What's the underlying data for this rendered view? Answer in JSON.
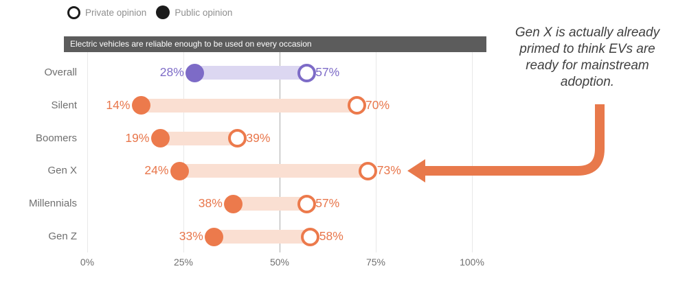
{
  "legend": {
    "private_label": "Private opinion",
    "public_label": "Public opinion"
  },
  "header": {
    "statement": "Electric vehicles are reliable enough to be used on every occasion"
  },
  "annotation": {
    "text": "Gen X is actually already primed to think EVs are ready for mainstream adoption."
  },
  "colors": {
    "purple": {
      "band": "#dcd7f1",
      "marker": "#7d6bc7",
      "text": "#7d6bc7"
    },
    "orange": {
      "band": "#fadfd2",
      "marker": "#ec7a4c",
      "text": "#e8764b"
    },
    "arrow": "#e8794b",
    "grid_light": "#e8e8e8",
    "grid_major": "#ababab"
  },
  "chart_data": {
    "type": "dumbbell",
    "title": "Electric vehicles are reliable enough to be used on every occasion",
    "categories": [
      "Overall",
      "Silent",
      "Boomers",
      "Gen X",
      "Millennials",
      "Gen Z"
    ],
    "series": [
      {
        "name": "Public opinion",
        "marker": "filled",
        "values": [
          28,
          14,
          19,
          24,
          38,
          33
        ]
      },
      {
        "name": "Private opinion",
        "marker": "open",
        "values": [
          57,
          70,
          39,
          73,
          57,
          58
        ]
      }
    ],
    "value_suffix": "%",
    "xtick_labels": [
      "0%",
      "25%",
      "50%",
      "75%",
      "100%"
    ],
    "xtick_values": [
      0,
      25,
      50,
      75,
      100
    ],
    "xlim": [
      0,
      100
    ],
    "grid": true,
    "row_colors": [
      "purple",
      "orange",
      "orange",
      "orange",
      "orange",
      "orange"
    ],
    "highlight_category": "Gen X",
    "legend_position": "top-left"
  }
}
